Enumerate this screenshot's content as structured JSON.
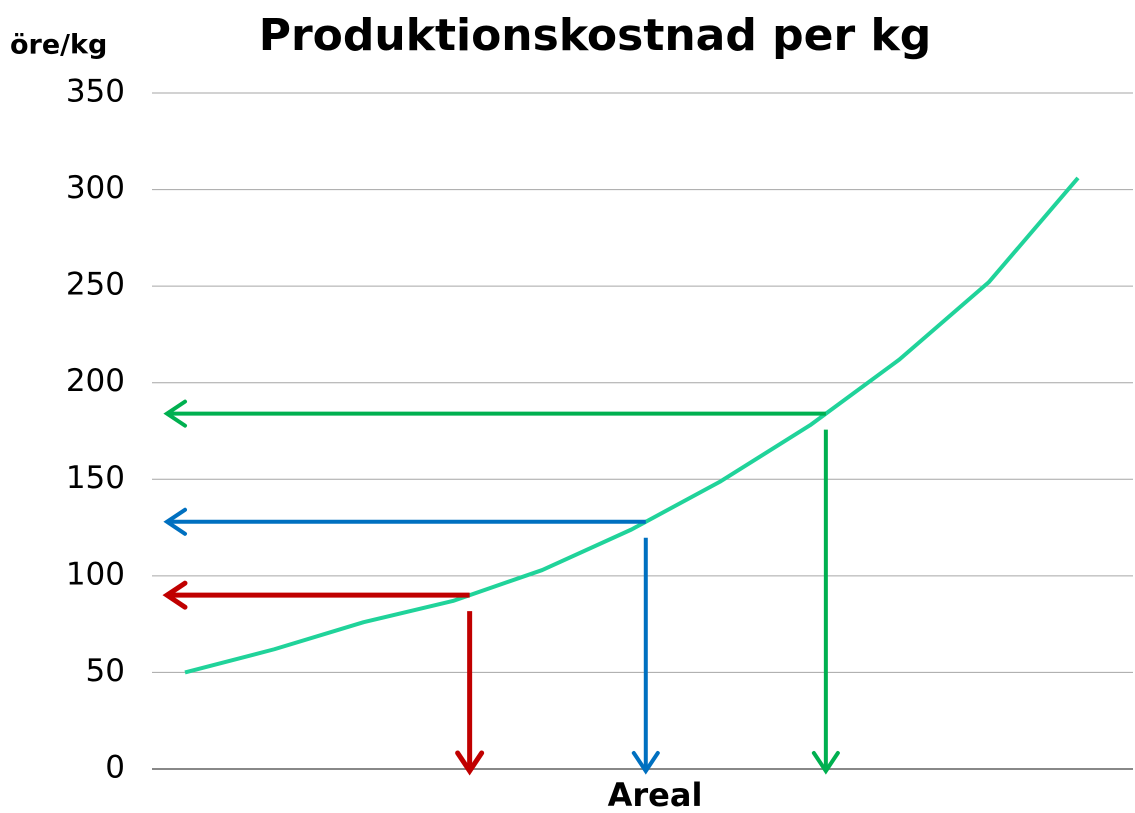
{
  "chart_data": {
    "type": "line",
    "title": "Produktionskostnad per kg",
    "ylabel": "öre/kg",
    "xlabel": "Areal",
    "categories": [
      null,
      null,
      null,
      null,
      null,
      null,
      null,
      null,
      null,
      null,
      null
    ],
    "series": [
      {
        "name": null,
        "color": "#20d39a",
        "values": [
          50,
          62,
          76,
          87,
          103,
          124,
          149,
          178,
          212,
          252,
          306
        ]
      }
    ],
    "guides": [
      {
        "color": "#c00000",
        "value": 90
      },
      {
        "color": "#0070c0",
        "value": 128
      },
      {
        "color": "#00b050",
        "value": 184
      }
    ],
    "ylim": [
      0,
      350
    ],
    "yticks": [
      0,
      50,
      100,
      150,
      200,
      250,
      300,
      350
    ],
    "grid": true
  }
}
